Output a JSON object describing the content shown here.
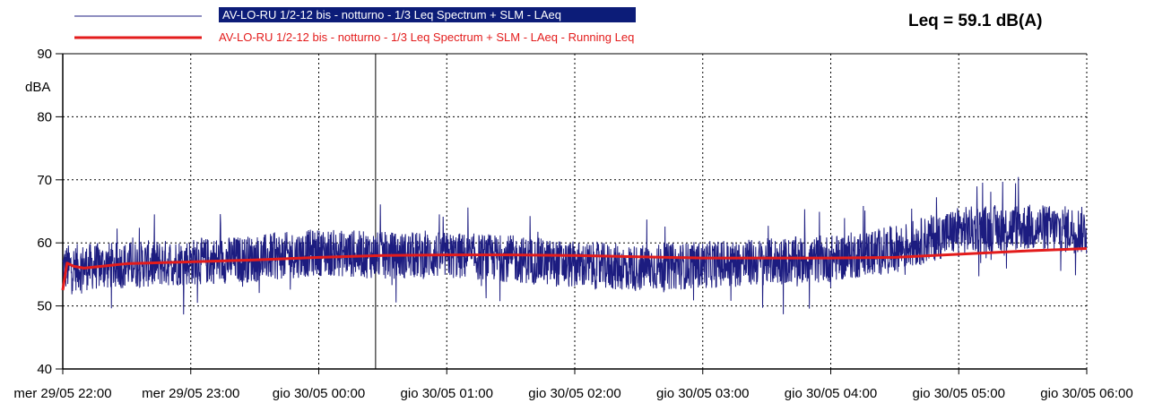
{
  "readout": {
    "leq_text": "Leq = 59.1 dB(A)"
  },
  "legend": [
    {
      "label": "AV-LO-RU 1/2-12 bis - notturno - 1/3 Leq Spectrum + SLM - LAeq",
      "color": "#1c1c80",
      "highlighted": true
    },
    {
      "label": "AV-LO-RU 1/2-12 bis - notturno - 1/3 Leq Spectrum + SLM - LAeq - Running Leq",
      "color": "#e31c1c",
      "highlighted": false
    }
  ],
  "chart_data": {
    "type": "line",
    "ylabel": "dBA",
    "xlabel": "",
    "title": "",
    "ylim": [
      40,
      90
    ],
    "y_ticks": [
      40,
      50,
      60,
      70,
      80,
      90
    ],
    "grid": true,
    "legend_position": "top-left",
    "x_range": [
      "mer 29/05 22:00",
      "gio 30/05 06:00"
    ],
    "x_ticks": [
      "mer 29/05 22:00",
      "mer 29/05 23:00",
      "gio 30/05 00:00",
      "gio 30/05 01:00",
      "gio 30/05 02:00",
      "gio 30/05 03:00",
      "gio 30/05 04:00",
      "gio 30/05 05:00",
      "gio 30/05 06:00"
    ],
    "series": [
      {
        "name": "AV-LO-RU 1/2-12 bis - notturno - 1/3 Leq Spectrum + SLM - LAeq",
        "color": "#1c1c80",
        "noise_amplitude_db": 5,
        "x": [
          "mer 29/05 22:00",
          "mer 29/05 22:30",
          "mer 29/05 23:00",
          "mer 29/05 23:30",
          "gio 30/05 00:00",
          "gio 30/05 00:30",
          "gio 30/05 01:00",
          "gio 30/05 01:30",
          "gio 30/05 02:00",
          "gio 30/05 02:30",
          "gio 30/05 03:00",
          "gio 30/05 03:30",
          "gio 30/05 04:00",
          "gio 30/05 04:30",
          "gio 30/05 05:00",
          "gio 30/05 05:30",
          "gio 30/05 06:00"
        ],
        "values": [
          56,
          56.5,
          57,
          57.5,
          58.5,
          58,
          58,
          57.5,
          56.5,
          56,
          56.5,
          57,
          57.5,
          59,
          62,
          62.5,
          62
        ]
      },
      {
        "name": "AV-LO-RU 1/2-12 bis - notturno - 1/3 Leq Spectrum + SLM - LAeq - Running Leq",
        "color": "#e31c1c",
        "x": [
          "mer 29/05 22:00",
          "mer 29/05 22:02",
          "mer 29/05 22:05",
          "mer 29/05 22:10",
          "mer 29/05 22:30",
          "mer 29/05 23:00",
          "mer 29/05 23:30",
          "gio 30/05 00:00",
          "gio 30/05 00:30",
          "gio 30/05 01:00",
          "gio 30/05 01:30",
          "gio 30/05 02:00",
          "gio 30/05 02:30",
          "gio 30/05 03:00",
          "gio 30/05 03:30",
          "gio 30/05 04:00",
          "gio 30/05 04:30",
          "gio 30/05 05:00",
          "gio 30/05 05:30",
          "gio 30/05 06:00"
        ],
        "values": [
          52.5,
          56.8,
          56.3,
          56.0,
          56.7,
          57.0,
          57.3,
          57.7,
          58.0,
          58.1,
          58.1,
          58.0,
          57.8,
          57.6,
          57.6,
          57.6,
          57.7,
          58.2,
          58.7,
          59.1
        ]
      }
    ]
  }
}
